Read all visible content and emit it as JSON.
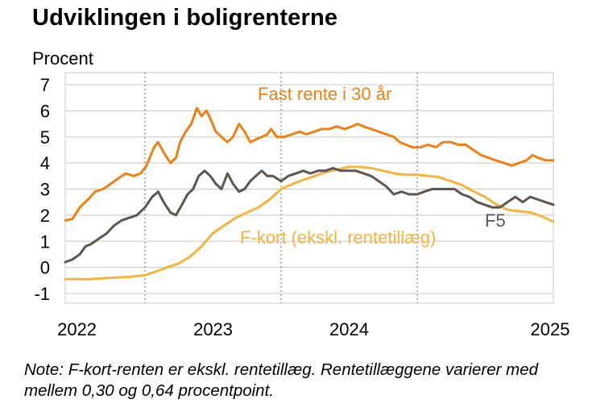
{
  "title": "Udviklingen i boligrenterne",
  "note": "Note: F-kort-renten er ekskl. rentetillæg. Rentetillæggene varierer med mellem 0,30 og 0,64 procentpoint.",
  "chart_data": {
    "type": "line",
    "ylabel": "Procent",
    "ylim": [
      -1,
      7
    ],
    "yticks": [
      "7",
      "6",
      "5",
      "4",
      "3",
      "2",
      "1",
      "0",
      "-1"
    ],
    "xlim": [
      "2021-06-01",
      "2024-12-31"
    ],
    "xticks": [
      {
        "label": "2022",
        "date": "2022-01-01"
      },
      {
        "label": "2023",
        "date": "2023-01-01"
      },
      {
        "label": "2024",
        "date": "2024-01-01"
      },
      {
        "label": "2025",
        "date": "2025-01-01"
      }
    ],
    "grid": true,
    "colors": {
      "fast": "#F08010",
      "f5": "#5E564E",
      "fkort": "#F5B53C",
      "grid": "#C8C8C8"
    },
    "series": [
      {
        "key": "fast",
        "name": "Fast rente i 30 år",
        "points": [
          [
            "2021-06-01",
            1.8
          ],
          [
            "2021-06-20",
            1.85
          ],
          [
            "2021-07-10",
            2.3
          ],
          [
            "2021-08-01",
            2.6
          ],
          [
            "2021-08-20",
            2.9
          ],
          [
            "2021-09-10",
            3.0
          ],
          [
            "2021-10-01",
            3.2
          ],
          [
            "2021-10-20",
            3.4
          ],
          [
            "2021-11-10",
            3.6
          ],
          [
            "2021-12-01",
            3.5
          ],
          [
            "2021-12-20",
            3.6
          ],
          [
            "2022-01-05",
            3.9
          ],
          [
            "2022-01-25",
            4.6
          ],
          [
            "2022-02-05",
            4.8
          ],
          [
            "2022-02-20",
            4.4
          ],
          [
            "2022-03-10",
            4.0
          ],
          [
            "2022-03-25",
            4.2
          ],
          [
            "2022-04-05",
            4.8
          ],
          [
            "2022-04-20",
            5.2
          ],
          [
            "2022-05-05",
            5.5
          ],
          [
            "2022-05-20",
            6.1
          ],
          [
            "2022-06-01",
            5.8
          ],
          [
            "2022-06-15",
            6.0
          ],
          [
            "2022-06-25",
            5.7
          ],
          [
            "2022-07-10",
            5.2
          ],
          [
            "2022-07-25",
            5.0
          ],
          [
            "2022-08-10",
            4.8
          ],
          [
            "2022-08-25",
            5.0
          ],
          [
            "2022-09-10",
            5.5
          ],
          [
            "2022-09-25",
            5.2
          ],
          [
            "2022-10-10",
            4.8
          ],
          [
            "2022-10-25",
            4.9
          ],
          [
            "2022-11-10",
            5.0
          ],
          [
            "2022-11-25",
            5.1
          ],
          [
            "2022-12-05",
            5.3
          ],
          [
            "2022-12-20",
            5.0
          ],
          [
            "2023-01-10",
            5.0
          ],
          [
            "2023-01-30",
            5.1
          ],
          [
            "2023-02-20",
            5.2
          ],
          [
            "2023-03-10",
            5.1
          ],
          [
            "2023-03-30",
            5.2
          ],
          [
            "2023-04-20",
            5.3
          ],
          [
            "2023-05-10",
            5.3
          ],
          [
            "2023-05-30",
            5.4
          ],
          [
            "2023-06-20",
            5.3
          ],
          [
            "2023-07-10",
            5.4
          ],
          [
            "2023-07-25",
            5.5
          ],
          [
            "2023-08-10",
            5.4
          ],
          [
            "2023-08-30",
            5.3
          ],
          [
            "2023-09-20",
            5.2
          ],
          [
            "2023-10-10",
            5.1
          ],
          [
            "2023-10-30",
            5.0
          ],
          [
            "2023-11-15",
            4.8
          ],
          [
            "2023-12-01",
            4.7
          ],
          [
            "2023-12-20",
            4.6
          ],
          [
            "2024-01-10",
            4.6
          ],
          [
            "2024-01-30",
            4.7
          ],
          [
            "2024-02-20",
            4.6
          ],
          [
            "2024-03-10",
            4.8
          ],
          [
            "2024-03-30",
            4.8
          ],
          [
            "2024-04-20",
            4.7
          ],
          [
            "2024-05-10",
            4.7
          ],
          [
            "2024-05-30",
            4.5
          ],
          [
            "2024-06-20",
            4.3
          ],
          [
            "2024-07-10",
            4.2
          ],
          [
            "2024-07-30",
            4.1
          ],
          [
            "2024-08-20",
            4.0
          ],
          [
            "2024-09-10",
            3.9
          ],
          [
            "2024-09-30",
            4.0
          ],
          [
            "2024-10-20",
            4.1
          ],
          [
            "2024-11-05",
            4.3
          ],
          [
            "2024-11-20",
            4.2
          ],
          [
            "2024-12-10",
            4.1
          ],
          [
            "2024-12-31",
            4.1
          ]
        ]
      },
      {
        "key": "f5",
        "name": "F5",
        "points": [
          [
            "2021-06-01",
            0.2
          ],
          [
            "2021-06-20",
            0.3
          ],
          [
            "2021-07-10",
            0.5
          ],
          [
            "2021-07-25",
            0.8
          ],
          [
            "2021-08-10",
            0.9
          ],
          [
            "2021-08-30",
            1.1
          ],
          [
            "2021-09-20",
            1.3
          ],
          [
            "2021-10-10",
            1.6
          ],
          [
            "2021-10-30",
            1.8
          ],
          [
            "2021-11-20",
            1.9
          ],
          [
            "2021-12-10",
            2.0
          ],
          [
            "2022-01-01",
            2.3
          ],
          [
            "2022-01-20",
            2.7
          ],
          [
            "2022-02-05",
            2.9
          ],
          [
            "2022-02-20",
            2.5
          ],
          [
            "2022-03-10",
            2.1
          ],
          [
            "2022-03-25",
            2.0
          ],
          [
            "2022-04-10",
            2.4
          ],
          [
            "2022-04-25",
            2.8
          ],
          [
            "2022-05-10",
            3.0
          ],
          [
            "2022-05-25",
            3.5
          ],
          [
            "2022-06-10",
            3.7
          ],
          [
            "2022-06-25",
            3.5
          ],
          [
            "2022-07-10",
            3.2
          ],
          [
            "2022-07-25",
            3.0
          ],
          [
            "2022-08-10",
            3.6
          ],
          [
            "2022-08-25",
            3.2
          ],
          [
            "2022-09-10",
            2.9
          ],
          [
            "2022-09-25",
            3.0
          ],
          [
            "2022-10-10",
            3.3
          ],
          [
            "2022-10-25",
            3.5
          ],
          [
            "2022-11-10",
            3.7
          ],
          [
            "2022-11-25",
            3.5
          ],
          [
            "2022-12-10",
            3.5
          ],
          [
            "2023-01-01",
            3.3
          ],
          [
            "2023-01-20",
            3.5
          ],
          [
            "2023-02-10",
            3.6
          ],
          [
            "2023-03-01",
            3.7
          ],
          [
            "2023-03-20",
            3.6
          ],
          [
            "2023-04-10",
            3.7
          ],
          [
            "2023-04-30",
            3.7
          ],
          [
            "2023-05-20",
            3.8
          ],
          [
            "2023-06-10",
            3.7
          ],
          [
            "2023-06-30",
            3.7
          ],
          [
            "2023-07-20",
            3.7
          ],
          [
            "2023-08-10",
            3.6
          ],
          [
            "2023-08-30",
            3.5
          ],
          [
            "2023-09-20",
            3.3
          ],
          [
            "2023-10-10",
            3.1
          ],
          [
            "2023-10-30",
            2.8
          ],
          [
            "2023-11-20",
            2.9
          ],
          [
            "2023-12-10",
            2.8
          ],
          [
            "2024-01-01",
            2.8
          ],
          [
            "2024-01-20",
            2.9
          ],
          [
            "2024-02-10",
            3.0
          ],
          [
            "2024-03-01",
            3.0
          ],
          [
            "2024-03-20",
            3.0
          ],
          [
            "2024-04-10",
            3.0
          ],
          [
            "2024-04-30",
            2.8
          ],
          [
            "2024-05-20",
            2.7
          ],
          [
            "2024-06-10",
            2.5
          ],
          [
            "2024-06-30",
            2.4
          ],
          [
            "2024-07-20",
            2.3
          ],
          [
            "2024-08-10",
            2.3
          ],
          [
            "2024-08-30",
            2.5
          ],
          [
            "2024-09-20",
            2.7
          ],
          [
            "2024-10-10",
            2.5
          ],
          [
            "2024-10-30",
            2.7
          ],
          [
            "2024-11-20",
            2.6
          ],
          [
            "2024-12-10",
            2.5
          ],
          [
            "2024-12-31",
            2.4
          ]
        ]
      },
      {
        "key": "fkort",
        "name": "F-kort (ekskl. rentetillæg)",
        "points": [
          [
            "2021-06-01",
            -0.45
          ],
          [
            "2021-07-01",
            -0.45
          ],
          [
            "2021-08-01",
            -0.45
          ],
          [
            "2021-09-01",
            -0.43
          ],
          [
            "2021-10-01",
            -0.4
          ],
          [
            "2021-11-01",
            -0.38
          ],
          [
            "2021-12-01",
            -0.35
          ],
          [
            "2022-01-01",
            -0.3
          ],
          [
            "2022-02-01",
            -0.15
          ],
          [
            "2022-03-01",
            0.0
          ],
          [
            "2022-04-01",
            0.15
          ],
          [
            "2022-05-01",
            0.4
          ],
          [
            "2022-06-01",
            0.8
          ],
          [
            "2022-07-01",
            1.3
          ],
          [
            "2022-08-01",
            1.6
          ],
          [
            "2022-09-01",
            1.9
          ],
          [
            "2022-10-01",
            2.1
          ],
          [
            "2022-11-01",
            2.3
          ],
          [
            "2022-12-01",
            2.6
          ],
          [
            "2023-01-01",
            3.0
          ],
          [
            "2023-02-01",
            3.2
          ],
          [
            "2023-03-01",
            3.35
          ],
          [
            "2023-04-01",
            3.5
          ],
          [
            "2023-05-01",
            3.65
          ],
          [
            "2023-06-01",
            3.75
          ],
          [
            "2023-07-01",
            3.85
          ],
          [
            "2023-08-01",
            3.85
          ],
          [
            "2023-09-01",
            3.8
          ],
          [
            "2023-10-01",
            3.7
          ],
          [
            "2023-11-01",
            3.6
          ],
          [
            "2023-12-01",
            3.55
          ],
          [
            "2024-01-01",
            3.55
          ],
          [
            "2024-02-01",
            3.5
          ],
          [
            "2024-03-01",
            3.45
          ],
          [
            "2024-04-01",
            3.3
          ],
          [
            "2024-05-01",
            3.15
          ],
          [
            "2024-06-01",
            2.9
          ],
          [
            "2024-07-01",
            2.7
          ],
          [
            "2024-08-01",
            2.4
          ],
          [
            "2024-09-01",
            2.2
          ],
          [
            "2024-10-01",
            2.15
          ],
          [
            "2024-11-01",
            2.1
          ],
          [
            "2024-12-01",
            1.95
          ],
          [
            "2024-12-31",
            1.75
          ]
        ]
      }
    ]
  }
}
